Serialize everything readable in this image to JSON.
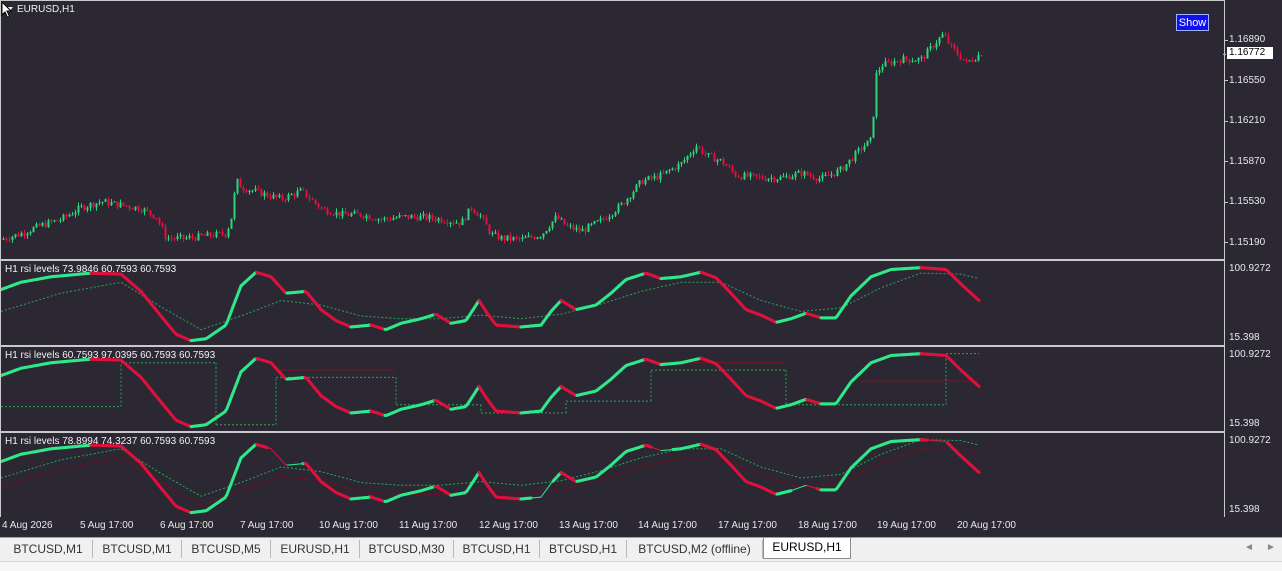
{
  "symbol_title": "EURUSD,H1",
  "show_button": "Show",
  "current_price": "1.16772",
  "price_axis": [
    "1.16890",
    "1.16550",
    "1.16210",
    "1.15870",
    "1.15530",
    "1.15190"
  ],
  "indicator_panes": [
    {
      "title": "H1  rsi levels  73.9846 60.7593 60.7593",
      "max_label": "100.9272",
      "min_label": "15.398"
    },
    {
      "title": "H1  rsi levels  60.7593 97.0395 60.7593 60.7593",
      "max_label": "100.9272",
      "min_label": "15.398"
    },
    {
      "title": "H1  rsi levels  78.8994 74.3237 60.7593 60.7593",
      "max_label": "100.9272",
      "min_label": "15.398"
    }
  ],
  "time_axis": [
    "4 Aug 2026",
    "5 Aug 17:00",
    "6 Aug 17:00",
    "7 Aug 17:00",
    "10 Aug 17:00",
    "11 Aug 17:00",
    "12 Aug 17:00",
    "13 Aug 17:00",
    "14 Aug 17:00",
    "17 Aug 17:00",
    "18 Aug 17:00",
    "19 Aug 17:00",
    "20 Aug 17:00"
  ],
  "tabs": [
    "BTCUSD,M1",
    "BTCUSD,M1",
    "BTCUSD,M5",
    "EURUSD,H1",
    "BTCUSD,M30",
    "BTCUSD,H1",
    "BTCUSD,H1",
    "BTCUSD,M2 (offline)",
    "EURUSD,H1"
  ],
  "active_tab": 8,
  "nav": {
    "left": "◄",
    "right": "►"
  },
  "colors": {
    "background": "#2b2833",
    "bull": "#2bd67b",
    "bear": "#e0103c",
    "rsi_up": "#2ee88a",
    "rsi_down": "#e0103c"
  },
  "chart_data": {
    "type": "candlestick",
    "symbol": "EURUSD",
    "timeframe": "H1",
    "y_ticks": [
      1.1689,
      1.1655,
      1.1621,
      1.1587,
      1.1553,
      1.1519
    ],
    "ylim": [
      1.1507,
      1.1718
    ],
    "last_price": 1.16772,
    "x_ticks": [
      "4 Aug 2026",
      "5 Aug 17:00",
      "6 Aug 17:00",
      "7 Aug 17:00",
      "10 Aug 17:00",
      "11 Aug 17:00",
      "12 Aug 17:00",
      "13 Aug 17:00",
      "14 Aug 17:00",
      "17 Aug 17:00",
      "18 Aug 17:00",
      "19 Aug 17:00",
      "20 Aug 17:00"
    ],
    "close_profile": [
      [
        0,
        1.1521
      ],
      [
        20,
        1.1526
      ],
      [
        40,
        1.1533
      ],
      [
        60,
        1.1538
      ],
      [
        80,
        1.1548
      ],
      [
        100,
        1.1553
      ],
      [
        120,
        1.155
      ],
      [
        140,
        1.1547
      ],
      [
        155,
        1.154
      ],
      [
        165,
        1.1522
      ],
      [
        185,
        1.1522
      ],
      [
        205,
        1.1524
      ],
      [
        225,
        1.1526
      ],
      [
        232,
        1.1545
      ],
      [
        234,
        1.1572
      ],
      [
        240,
        1.1565
      ],
      [
        260,
        1.156
      ],
      [
        280,
        1.1555
      ],
      [
        300,
        1.1562
      ],
      [
        320,
        1.1547
      ],
      [
        340,
        1.1542
      ],
      [
        360,
        1.1542
      ],
      [
        380,
        1.1538
      ],
      [
        400,
        1.154
      ],
      [
        420,
        1.154
      ],
      [
        440,
        1.1538
      ],
      [
        460,
        1.1535
      ],
      [
        470,
        1.1548
      ],
      [
        480,
        1.154
      ],
      [
        490,
        1.1525
      ],
      [
        500,
        1.1522
      ],
      [
        520,
        1.1521
      ],
      [
        540,
        1.1525
      ],
      [
        555,
        1.154
      ],
      [
        565,
        1.1532
      ],
      [
        580,
        1.1528
      ],
      [
        600,
        1.1537
      ],
      [
        620,
        1.155
      ],
      [
        640,
        1.157
      ],
      [
        660,
        1.1575
      ],
      [
        680,
        1.1585
      ],
      [
        695,
        1.16
      ],
      [
        705,
        1.1592
      ],
      [
        720,
        1.1587
      ],
      [
        735,
        1.1575
      ],
      [
        760,
        1.1573
      ],
      [
        780,
        1.1573
      ],
      [
        800,
        1.1577
      ],
      [
        820,
        1.1572
      ],
      [
        840,
        1.158
      ],
      [
        860,
        1.1598
      ],
      [
        870,
        1.1605
      ],
      [
        875,
        1.166
      ],
      [
        880,
        1.1668
      ],
      [
        900,
        1.1673
      ],
      [
        920,
        1.1673
      ],
      [
        935,
        1.1688
      ],
      [
        942,
        1.1694
      ],
      [
        950,
        1.1683
      ],
      [
        965,
        1.167
      ],
      [
        980,
        1.1678
      ]
    ]
  },
  "rsi_data": {
    "ylim": [
      15.398,
      100.9272
    ],
    "main_line": [
      [
        0,
        74
      ],
      [
        20,
        82
      ],
      [
        50,
        88
      ],
      [
        90,
        92
      ],
      [
        120,
        91
      ],
      [
        140,
        72
      ],
      [
        160,
        45
      ],
      [
        175,
        25
      ],
      [
        190,
        18
      ],
      [
        205,
        20
      ],
      [
        225,
        35
      ],
      [
        240,
        78
      ],
      [
        255,
        93
      ],
      [
        270,
        88
      ],
      [
        285,
        70
      ],
      [
        305,
        72
      ],
      [
        320,
        52
      ],
      [
        335,
        40
      ],
      [
        350,
        33
      ],
      [
        370,
        35
      ],
      [
        385,
        30
      ],
      [
        400,
        37
      ],
      [
        420,
        42
      ],
      [
        435,
        47
      ],
      [
        450,
        37
      ],
      [
        465,
        40
      ],
      [
        478,
        62
      ],
      [
        485,
        50
      ],
      [
        495,
        35
      ],
      [
        520,
        33
      ],
      [
        540,
        35
      ],
      [
        550,
        50
      ],
      [
        560,
        62
      ],
      [
        575,
        52
      ],
      [
        595,
        57
      ],
      [
        610,
        70
      ],
      [
        625,
        85
      ],
      [
        645,
        92
      ],
      [
        660,
        86
      ],
      [
        680,
        88
      ],
      [
        700,
        93
      ],
      [
        715,
        87
      ],
      [
        730,
        70
      ],
      [
        745,
        52
      ],
      [
        760,
        46
      ],
      [
        775,
        38
      ],
      [
        790,
        42
      ],
      [
        805,
        48
      ],
      [
        820,
        43
      ],
      [
        835,
        43
      ],
      [
        850,
        67
      ],
      [
        870,
        88
      ],
      [
        890,
        96
      ],
      [
        920,
        98
      ],
      [
        945,
        96
      ],
      [
        960,
        80
      ],
      [
        978,
        62
      ]
    ],
    "signal_line": [
      [
        0,
        50
      ],
      [
        60,
        70
      ],
      [
        120,
        82
      ],
      [
        160,
        55
      ],
      [
        200,
        30
      ],
      [
        240,
        45
      ],
      [
        280,
        62
      ],
      [
        320,
        57
      ],
      [
        360,
        45
      ],
      [
        400,
        42
      ],
      [
        440,
        42
      ],
      [
        480,
        46
      ],
      [
        520,
        42
      ],
      [
        560,
        47
      ],
      [
        600,
        58
      ],
      [
        640,
        72
      ],
      [
        680,
        82
      ],
      [
        720,
        82
      ],
      [
        760,
        62
      ],
      [
        800,
        50
      ],
      [
        840,
        54
      ],
      [
        880,
        76
      ],
      [
        920,
        92
      ],
      [
        960,
        91
      ],
      [
        978,
        86
      ]
    ],
    "levels": [
      98,
      88,
      72,
      60,
      40
    ]
  }
}
